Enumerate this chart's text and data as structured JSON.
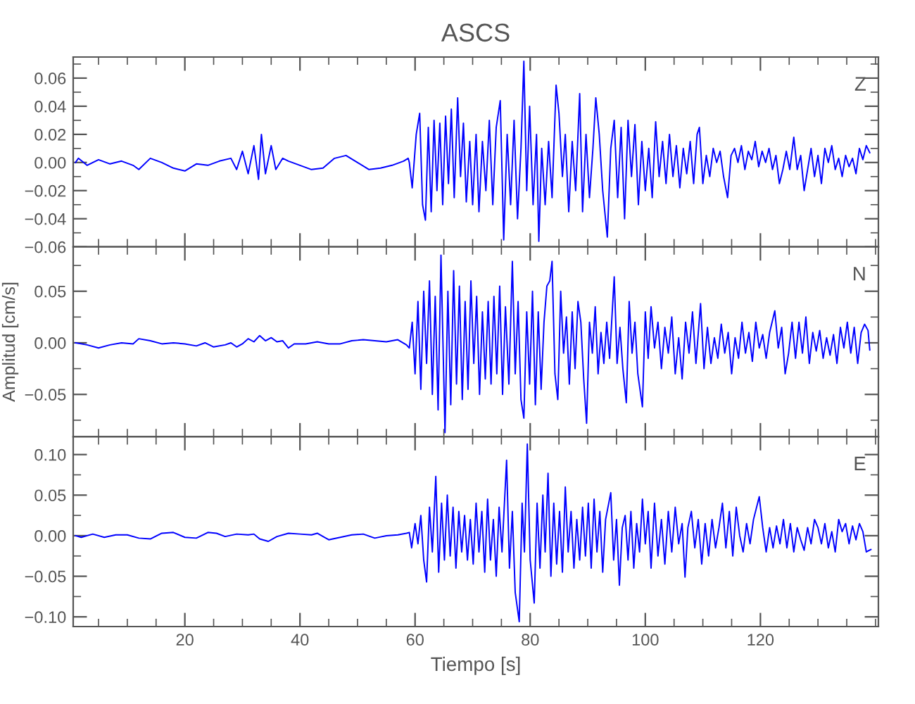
{
  "chart_data": [
    {
      "type": "line",
      "title": "ASCS",
      "annotations": [
        "Z"
      ],
      "tick_labels": "y",
      "grid": false,
      "xlim": [
        0.6,
        140.5
      ],
      "ylim": [
        -0.06,
        0.075
      ],
      "xticks": [
        20,
        40,
        60,
        80,
        100,
        120
      ],
      "yticks": [
        {
          "value": -0.06,
          "label": "−0.06"
        },
        {
          "value": -0.04,
          "label": "−0.04"
        },
        {
          "value": -0.02,
          "label": "−0.02"
        },
        {
          "value": 0,
          "label": "0.00"
        },
        {
          "value": 0.02,
          "label": "0.02"
        },
        {
          "value": 0.04,
          "label": "0.04"
        },
        {
          "value": 0.06,
          "label": "0.06"
        }
      ],
      "series": [
        {
          "color": "#0000ff",
          "x": [
            1,
            1.5,
            3,
            5,
            7,
            9,
            11,
            12,
            14,
            16,
            18,
            20,
            22,
            24,
            26,
            28,
            29,
            30,
            31,
            32,
            32.8,
            33.3,
            34,
            35,
            35.8,
            37,
            38,
            40,
            42,
            44,
            46,
            48,
            50,
            52,
            54,
            56,
            58,
            58.8,
            59.0,
            59.5,
            60.2,
            60.8,
            61.3,
            61.8,
            62.3,
            62.8,
            63.3,
            63.8,
            64.3,
            64.8,
            65.3,
            65.8,
            66.3,
            66.8,
            67.4,
            67.9,
            68.4,
            68.9,
            69.5,
            70.0,
            70.6,
            71.1,
            71.7,
            72.3,
            72.9,
            73.5,
            74.1,
            74.8,
            75.4,
            76.0,
            76.6,
            77.2,
            77.8,
            78.4,
            78.9,
            79.4,
            79.9,
            80.5,
            81.1,
            81.5,
            82.0,
            82.6,
            83.2,
            83.8,
            84.5,
            85.0,
            85.6,
            86.1,
            86.7,
            87.3,
            87.9,
            88.6,
            89.1,
            89.7,
            90.3,
            90.9,
            91.4,
            92.0,
            92.6,
            93.4,
            94.0,
            94.6,
            95.2,
            95.8,
            96.4,
            97.0,
            97.6,
            98.2,
            98.8,
            99.4,
            100.0,
            100.6,
            101.2,
            101.8,
            102.4,
            103.0,
            103.6,
            104.2,
            104.8,
            105.4,
            106.0,
            106.6,
            107.2,
            107.8,
            108.4,
            109.0,
            109.4,
            110.0,
            110.6,
            111.2,
            111.8,
            112.4,
            113.0,
            113.6,
            114.3,
            114.9,
            115.5,
            116.1,
            116.7,
            117.3,
            117.9,
            118.5,
            119.1,
            119.7,
            120.3,
            120.9,
            121.5,
            122.1,
            122.7,
            123.3,
            123.9,
            124.5,
            125.1,
            125.8,
            126.4,
            127.0,
            127.6,
            128.2,
            128.8,
            129.4,
            130.0,
            130.6,
            131.2,
            131.8,
            132.4,
            133.0,
            133.6,
            134.2,
            134.8,
            135.4,
            136.0,
            136.6,
            137.2,
            137.8,
            138.4,
            139.0
          ],
          "values": [
            0.0,
            0.003,
            -0.002,
            0.002,
            -0.001,
            0.001,
            -0.002,
            -0.005,
            0.003,
            0.0,
            -0.004,
            -0.006,
            -0.001,
            -0.002,
            0.001,
            0.003,
            -0.005,
            0.008,
            -0.008,
            0.012,
            -0.012,
            0.02,
            -0.008,
            0.012,
            -0.005,
            0.003,
            0.001,
            -0.002,
            -0.005,
            -0.004,
            0.003,
            0.005,
            0.0,
            -0.005,
            -0.004,
            -0.002,
            0.001,
            0.003,
            0.0,
            -0.018,
            0.02,
            0.035,
            -0.03,
            -0.041,
            0.025,
            -0.035,
            0.03,
            -0.02,
            0.028,
            -0.03,
            0.033,
            -0.015,
            0.038,
            -0.025,
            0.046,
            -0.01,
            0.028,
            -0.028,
            0.015,
            -0.03,
            0.02,
            -0.035,
            0.015,
            -0.02,
            0.03,
            -0.03,
            0.025,
            0.044,
            -0.055,
            0.02,
            -0.03,
            0.03,
            -0.04,
            0.01,
            0.072,
            -0.02,
            0.04,
            -0.03,
            0.02,
            -0.056,
            0.01,
            -0.03,
            0.015,
            -0.025,
            0.055,
            0.035,
            -0.01,
            0.02,
            -0.035,
            0.015,
            -0.02,
            0.049,
            -0.035,
            0.02,
            -0.025,
            0.01,
            0.046,
            0.02,
            -0.02,
            -0.053,
            0.01,
            0.03,
            -0.025,
            0.025,
            -0.04,
            0.03,
            -0.01,
            0.027,
            -0.03,
            0.015,
            -0.02,
            0.01,
            -0.025,
            0.029,
            -0.01,
            0.015,
            -0.015,
            0.02,
            -0.01,
            0.012,
            -0.018,
            0.01,
            -0.008,
            0.015,
            -0.015,
            0.02,
            0.025,
            -0.015,
            0.005,
            -0.01,
            0.01,
            0.0,
            0.008,
            -0.01,
            -0.025,
            0.005,
            0.01,
            0.0,
            0.012,
            -0.005,
            0.008,
            0.002,
            0.015,
            -0.003,
            0.008,
            0.0,
            0.01,
            -0.005,
            0.005,
            -0.015,
            -0.005,
            0.008,
            -0.005,
            0.018,
            -0.005,
            0.005,
            -0.02,
            -0.005,
            0.01,
            -0.01,
            0.005,
            -0.015,
            0.01,
            0.0,
            0.012,
            -0.005,
            0.003,
            -0.01,
            0.005,
            -0.003,
            0.003,
            -0.008,
            0.01,
            0.002,
            0.012,
            0.007
          ]
        }
      ]
    },
    {
      "type": "line",
      "ylabel": "Amplitud [cm/s]",
      "annotations": [
        "N"
      ],
      "tick_labels": "y",
      "grid": false,
      "xlim": [
        0.6,
        140.5
      ],
      "ylim": [
        -0.091,
        0.093
      ],
      "xticks": [
        20,
        40,
        60,
        80,
        100,
        120
      ],
      "yticks": [
        {
          "value": -0.05,
          "label": "−0.05"
        },
        {
          "value": 0,
          "label": "0.00"
        },
        {
          "value": 0.05,
          "label": "0.05"
        }
      ],
      "series": [
        {
          "color": "#0000ff",
          "x": [
            1,
            3,
            5,
            7,
            9,
            11,
            12,
            14,
            16,
            18,
            20,
            22,
            23.5,
            25,
            27,
            28,
            29,
            30,
            31,
            32,
            33,
            34,
            35,
            36,
            37,
            38,
            39,
            41,
            43,
            45,
            47,
            49,
            51,
            53,
            55,
            57,
            58.5,
            59.0,
            59.5,
            60.0,
            60.5,
            61.0,
            61.5,
            62.0,
            62.5,
            63.0,
            63.5,
            64.0,
            64.5,
            65.2,
            65.7,
            66.2,
            66.7,
            67.2,
            67.7,
            68.2,
            68.7,
            69.2,
            69.7,
            70.2,
            70.7,
            71.2,
            71.7,
            72.2,
            72.7,
            73.2,
            73.7,
            74.2,
            74.7,
            75.2,
            75.7,
            76.3,
            76.9,
            77.4,
            77.9,
            78.4,
            78.9,
            79.4,
            79.9,
            80.4,
            80.9,
            81.4,
            81.9,
            82.4,
            82.9,
            83.4,
            83.8,
            84.3,
            84.8,
            85.3,
            85.8,
            86.3,
            86.8,
            87.3,
            87.8,
            88.3,
            88.8,
            89.3,
            89.8,
            90.3,
            90.8,
            91.3,
            91.8,
            92.3,
            92.8,
            93.3,
            93.8,
            94.6,
            95.1,
            95.6,
            96.1,
            96.7,
            97.2,
            97.7,
            98.2,
            98.7,
            99.5,
            100.0,
            100.5,
            101.0,
            101.6,
            102.2,
            102.8,
            103.4,
            104.0,
            104.6,
            105.2,
            105.8,
            106.4,
            107.0,
            107.6,
            108.2,
            108.8,
            109.6,
            110.2,
            110.8,
            111.4,
            112.0,
            112.6,
            113.2,
            113.8,
            114.4,
            115.0,
            115.6,
            116.2,
            116.8,
            117.4,
            118.0,
            118.6,
            119.2,
            119.8,
            120.4,
            121.0,
            121.6,
            122.5,
            123.1,
            123.7,
            124.3,
            124.9,
            125.5,
            126.1,
            126.7,
            127.3,
            127.9,
            128.5,
            129.1,
            129.7,
            130.3,
            130.9,
            131.5,
            132.1,
            132.7,
            133.3,
            133.9,
            134.5,
            135.1,
            135.7,
            136.3,
            136.9,
            137.5,
            138.1,
            138.7,
            139.0
          ],
          "values": [
            0.0,
            -0.002,
            -0.005,
            -0.002,
            0.0,
            -0.001,
            0.004,
            0.002,
            -0.001,
            0.0,
            -0.001,
            -0.003,
            0.0,
            -0.004,
            -0.002,
            0.0,
            -0.004,
            -0.001,
            0.004,
            0.001,
            0.007,
            0.002,
            0.005,
            0.001,
            0.002,
            -0.005,
            -0.001,
            -0.001,
            0.001,
            -0.001,
            -0.001,
            0.002,
            0.003,
            0.002,
            0.001,
            0.003,
            -0.002,
            -0.005,
            0.02,
            -0.03,
            0.04,
            -0.045,
            0.05,
            -0.02,
            0.06,
            -0.05,
            0.045,
            -0.065,
            0.085,
            -0.087,
            0.05,
            -0.06,
            0.07,
            -0.04,
            0.055,
            -0.055,
            0.04,
            -0.045,
            0.06,
            -0.02,
            0.045,
            -0.05,
            0.03,
            -0.035,
            0.04,
            -0.04,
            0.045,
            -0.03,
            0.055,
            -0.05,
            0.035,
            -0.04,
            0.079,
            -0.03,
            0.04,
            -0.055,
            -0.073,
            0.03,
            -0.04,
            0.05,
            -0.06,
            0.03,
            -0.045,
            0.02,
            0.055,
            0.06,
            0.079,
            -0.03,
            -0.055,
            0.05,
            -0.01,
            0.025,
            -0.04,
            0.03,
            -0.025,
            0.04,
            0.02,
            -0.035,
            -0.078,
            0.02,
            -0.01,
            0.035,
            -0.03,
            0.01,
            -0.02,
            0.02,
            -0.015,
            0.064,
            -0.02,
            0.015,
            -0.025,
            -0.058,
            0.04,
            -0.01,
            0.02,
            -0.03,
            -0.062,
            0.03,
            -0.015,
            0.035,
            -0.005,
            0.02,
            -0.025,
            0.015,
            -0.01,
            0.025,
            -0.03,
            0.005,
            -0.035,
            0.02,
            -0.01,
            0.03,
            -0.02,
            0.038,
            -0.025,
            0.015,
            -0.02,
            0.005,
            -0.015,
            0.018,
            -0.01,
            0.01,
            -0.03,
            0.005,
            -0.015,
            0.02,
            -0.01,
            0.01,
            -0.018,
            0.02,
            -0.005,
            0.008,
            -0.015,
            0.01,
            0.031,
            -0.005,
            0.015,
            -0.03,
            -0.01,
            0.02,
            -0.015,
            0.02,
            -0.01,
            0.025,
            -0.02,
            0.01,
            -0.008,
            0.012,
            -0.015,
            0.005,
            -0.012,
            0.008,
            -0.02,
            0.015,
            -0.005,
            0.02,
            -0.01,
            0.015,
            -0.02,
            0.01,
            0.018,
            0.012,
            -0.007
          ]
        }
      ]
    },
    {
      "type": "line",
      "xlabel": "Tiempo [s]",
      "annotations": [
        "E"
      ],
      "grid": false,
      "xlim": [
        0.6,
        140.5
      ],
      "ylim": [
        -0.112,
        0.122
      ],
      "xticks": [
        20,
        40,
        60,
        80,
        100,
        120
      ],
      "yticks": [
        {
          "value": -0.1,
          "label": "−0.10"
        },
        {
          "value": -0.05,
          "label": "−0.05"
        },
        {
          "value": 0,
          "label": "0.00"
        },
        {
          "value": 0.05,
          "label": "0.05"
        },
        {
          "value": 0.1,
          "label": "0.10"
        }
      ],
      "series": [
        {
          "color": "#0000ff",
          "x": [
            1,
            2,
            4,
            6,
            8,
            10,
            12,
            14,
            16,
            18,
            20,
            22,
            24,
            25.5,
            27,
            29,
            31,
            32,
            33,
            34.5,
            36,
            38,
            40,
            42,
            43,
            45,
            47,
            49,
            51,
            53,
            55,
            57,
            58.5,
            59.0,
            59.4,
            60.0,
            60.5,
            61.0,
            61.5,
            62.0,
            62.5,
            63.0,
            63.6,
            64.1,
            64.6,
            65.1,
            65.6,
            66.1,
            66.6,
            67.1,
            67.6,
            68.1,
            68.6,
            69.1,
            69.6,
            70.1,
            70.6,
            71.1,
            71.6,
            72.1,
            72.6,
            73.1,
            73.6,
            74.1,
            74.6,
            75.1,
            75.9,
            76.4,
            76.9,
            77.4,
            78.1,
            78.6,
            79.0,
            79.5,
            80.0,
            80.7,
            81.2,
            81.7,
            82.2,
            82.6,
            83.1,
            83.6,
            84.1,
            84.6,
            85.1,
            85.6,
            86.1,
            86.6,
            87.1,
            87.6,
            88.1,
            88.6,
            89.1,
            89.6,
            90.1,
            90.6,
            91.1,
            91.6,
            92.1,
            92.6,
            93.1,
            94.0,
            94.5,
            95.0,
            95.5,
            96.0,
            96.5,
            97.0,
            97.5,
            98.0,
            98.5,
            99.0,
            99.5,
            100.0,
            100.5,
            101.0,
            101.6,
            102.2,
            102.8,
            103.4,
            104.0,
            104.6,
            105.2,
            105.8,
            106.4,
            106.9,
            107.4,
            108.0,
            108.6,
            109.2,
            109.8,
            110.4,
            111.0,
            111.6,
            112.2,
            112.8,
            113.4,
            114.0,
            114.6,
            115.2,
            115.8,
            116.4,
            117.0,
            117.6,
            118.2,
            118.8,
            119.8,
            120.4,
            121.0,
            121.6,
            122.2,
            122.8,
            123.4,
            124.0,
            124.6,
            125.2,
            125.8,
            126.4,
            127.0,
            127.6,
            128.2,
            128.8,
            129.4,
            130.0,
            130.6,
            131.2,
            131.8,
            132.4,
            133.0,
            133.6,
            134.2,
            134.8,
            135.4,
            136.0,
            136.6,
            137.2,
            137.8,
            138.4,
            139.2
          ],
          "values": [
            0.0,
            -0.002,
            0.002,
            -0.002,
            0.001,
            0.001,
            -0.003,
            -0.004,
            0.003,
            0.004,
            -0.002,
            -0.003,
            0.004,
            0.003,
            -0.001,
            0.002,
            0.001,
            0.002,
            -0.004,
            -0.007,
            -0.001,
            0.003,
            0.002,
            0.001,
            0.003,
            -0.005,
            -0.002,
            0.001,
            0.002,
            -0.003,
            0.0,
            0.001,
            0.003,
            0.004,
            -0.015,
            0.015,
            -0.01,
            0.025,
            -0.03,
            -0.057,
            0.035,
            -0.02,
            0.073,
            -0.045,
            0.04,
            -0.03,
            0.05,
            -0.025,
            0.035,
            -0.04,
            0.03,
            -0.02,
            0.025,
            -0.03,
            0.02,
            -0.035,
            0.04,
            -0.02,
            0.03,
            -0.045,
            0.045,
            -0.03,
            0.02,
            -0.05,
            0.035,
            -0.02,
            0.093,
            -0.04,
            0.03,
            -0.07,
            -0.106,
            0.04,
            -0.02,
            0.113,
            -0.03,
            -0.083,
            0.04,
            -0.04,
            0.05,
            -0.02,
            0.077,
            -0.05,
            0.04,
            -0.035,
            0.03,
            -0.045,
            0.06,
            -0.02,
            0.03,
            -0.04,
            0.02,
            -0.03,
            0.035,
            -0.025,
            0.04,
            -0.04,
            0.045,
            -0.02,
            0.03,
            -0.045,
            0.02,
            0.053,
            -0.03,
            0.02,
            -0.061,
            0.01,
            0.025,
            -0.03,
            0.03,
            -0.04,
            0.015,
            -0.02,
            0.045,
            -0.01,
            0.03,
            -0.04,
            0.04,
            -0.025,
            0.02,
            -0.035,
            0.03,
            -0.02,
            0.035,
            -0.01,
            0.015,
            -0.051,
            0.01,
            0.03,
            -0.015,
            0.02,
            -0.035,
            0.015,
            -0.025,
            0.02,
            -0.015,
            0.01,
            0.04,
            -0.015,
            0.03,
            -0.025,
            0.035,
            0.0,
            -0.02,
            0.015,
            -0.01,
            0.02,
            0.048,
            0.01,
            -0.02,
            0.01,
            -0.015,
            0.012,
            -0.01,
            0.02,
            -0.015,
            0.015,
            -0.02,
            0.01,
            -0.005,
            -0.018,
            0.01,
            -0.01,
            0.02,
            0.01,
            -0.01,
            0.015,
            -0.015,
            0.005,
            -0.02,
            0.02,
            0.005,
            0.015,
            -0.01,
            0.012,
            -0.005,
            0.015,
            0.005,
            -0.02,
            -0.017
          ]
        }
      ]
    }
  ]
}
